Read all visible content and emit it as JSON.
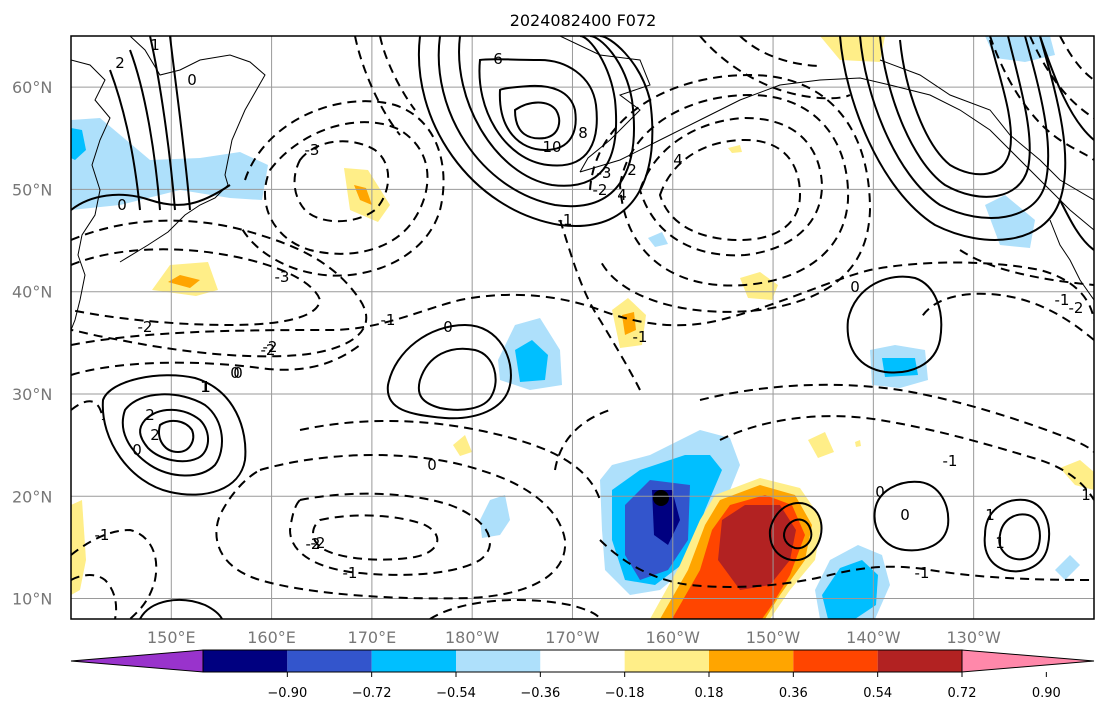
{
  "title": "2024082400 F072",
  "map": {
    "lat_labels": [
      "60°N",
      "50°N",
      "40°N",
      "30°N",
      "20°N",
      "10°N"
    ],
    "lon_labels": [
      "150°E",
      "160°E",
      "170°E",
      "180°W",
      "170°W",
      "160°W",
      "150°W",
      "140°W",
      "130°W"
    ],
    "lat_values": [
      60,
      50,
      40,
      30,
      20,
      10
    ],
    "lon_values": [
      150,
      160,
      170,
      180,
      190,
      200,
      210,
      220,
      230
    ],
    "extent": {
      "lon": [
        140,
        242
      ],
      "lat": [
        8,
        65
      ]
    },
    "contour_labels": [
      "2",
      "1",
      "0",
      "0",
      "1",
      "-2",
      "-3",
      "-1",
      "-2",
      "-3",
      "0",
      "6",
      "8",
      "10",
      "2",
      "-1",
      "4",
      "4",
      "0",
      "-1",
      "-2",
      "-3",
      "0",
      "-2",
      "-1",
      "-2",
      "0",
      "1",
      "2",
      "2",
      "0",
      "0",
      "-1",
      "-2",
      "-1",
      "-1",
      "0",
      "1",
      "1",
      "0",
      "1",
      "-1",
      "-2"
    ]
  },
  "colorbar": {
    "ticks": [
      "−0.90",
      "−0.72",
      "−0.54",
      "−0.36",
      "−0.18",
      "0.18",
      "0.36",
      "0.54",
      "0.72",
      "0.90"
    ],
    "colors": [
      "#9933cc",
      "#000080",
      "#3355cc",
      "#00bfff",
      "#aee0fb",
      "#ffffff",
      "#ffee88",
      "#ffa500",
      "#ff4500",
      "#b22222",
      "#ff88aa"
    ]
  }
}
